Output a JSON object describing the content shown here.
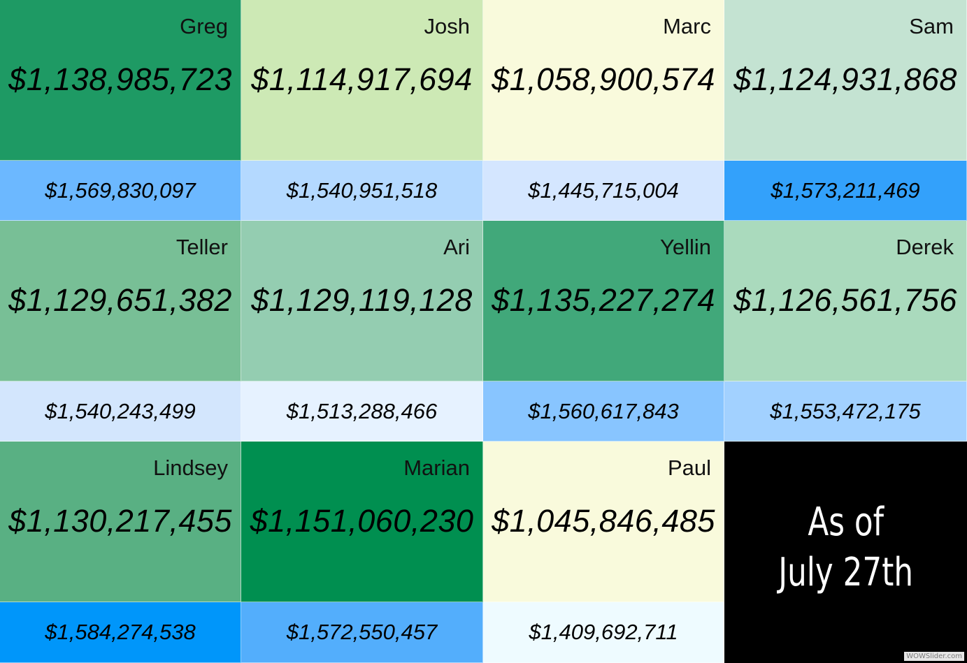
{
  "people": [
    {
      "name": "Greg",
      "main": "$1,138,985,723",
      "sub": "$1,569,830,097",
      "main_color": "#1e9a64",
      "sub_color": "#6cb8ff"
    },
    {
      "name": "Josh",
      "main": "$1,114,917,694",
      "sub": "$1,540,951,518",
      "main_color": "#cde9b5",
      "sub_color": "#b4d9ff"
    },
    {
      "name": "Marc",
      "main": "$1,058,900,574",
      "sub": "$1,445,715,004",
      "main_color": "#f9fadc",
      "sub_color": "#d4e6ff"
    },
    {
      "name": "Sam",
      "main": "$1,124,931,868",
      "sub": "$1,573,211,469",
      "main_color": "#c4e3d2",
      "sub_color": "#33a1fb"
    },
    {
      "name": "Teller",
      "main": "$1,129,651,382",
      "sub": "$1,540,243,499",
      "main_color": "#78bf96",
      "sub_color": "#d3e6fd"
    },
    {
      "name": "Ari",
      "main": "$1,129,119,128",
      "sub": "$1,513,288,466",
      "main_color": "#94cdb1",
      "sub_color": "#e6f2ff"
    },
    {
      "name": "Yellin",
      "main": "$1,135,227,274",
      "sub": "$1,560,617,843",
      "main_color": "#41a87a",
      "sub_color": "#88c5ff"
    },
    {
      "name": "Derek",
      "main": "$1,126,561,756",
      "sub": "$1,553,472,175",
      "main_color": "#aadabd",
      "sub_color": "#a2d1ff"
    },
    {
      "name": "Lindsey",
      "main": "$1,130,217,455",
      "sub": "$1,584,274,538",
      "main_color": "#59b083",
      "sub_color": "#0096fa"
    },
    {
      "name": "Marian",
      "main": "$1,151,060,230",
      "sub": "$1,572,550,457",
      "main_color": "#008f50",
      "sub_color": "#53aefc"
    },
    {
      "name": "Paul",
      "main": "$1,045,846,485",
      "sub": "$1,409,692,711",
      "main_color": "#f9fadc",
      "sub_color": "#eefbff"
    }
  ],
  "date_label": {
    "line1": "As of",
    "line2": "July 27th"
  },
  "watermark": "WOWSlider.com"
}
